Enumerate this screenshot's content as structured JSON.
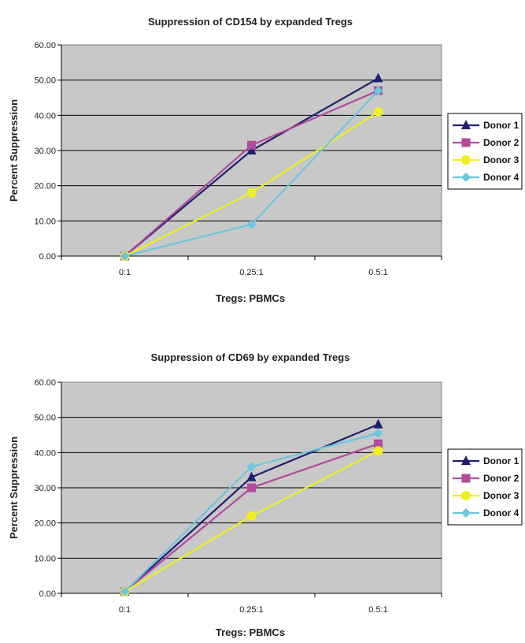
{
  "chart_data": [
    {
      "type": "line",
      "title": "Suppression of CD154 by expanded Tregs",
      "xlabel": "Tregs: PBMCs",
      "ylabel": "Percent Suppression",
      "categories": [
        "0:1",
        "0.25:1",
        "0.5:1"
      ],
      "ylim": [
        0,
        60
      ],
      "yticks": [
        "0.00",
        "10.00",
        "20.00",
        "30.00",
        "40.00",
        "50.00",
        "60.00"
      ],
      "grid": true,
      "legend_position": "right",
      "series": [
        {
          "name": "Donor 1",
          "values": [
            0,
            30,
            50.5
          ],
          "color": "#1f1f6e",
          "marker": "triangle"
        },
        {
          "name": "Donor 2",
          "values": [
            0,
            31.5,
            47
          ],
          "color": "#b24a9e",
          "marker": "square"
        },
        {
          "name": "Donor 3",
          "values": [
            0,
            18,
            41
          ],
          "color": "#f0f020",
          "marker": "circle"
        },
        {
          "name": "Donor 4",
          "values": [
            0,
            9,
            47
          ],
          "color": "#6cc6dc",
          "marker": "diamond"
        }
      ]
    },
    {
      "type": "line",
      "title": "Suppression of CD69 by expanded Tregs",
      "xlabel": "Tregs: PBMCs",
      "ylabel": "Percent Suppression",
      "categories": [
        "0:1",
        "0.25:1",
        "0.5:1"
      ],
      "ylim": [
        0,
        60
      ],
      "yticks": [
        "0.00",
        "10.00",
        "20.00",
        "30.00",
        "40.00",
        "50.00",
        "60.00"
      ],
      "grid": true,
      "legend_position": "right",
      "series": [
        {
          "name": "Donor 1",
          "values": [
            0.5,
            33,
            48
          ],
          "color": "#1f1f6e",
          "marker": "triangle"
        },
        {
          "name": "Donor 2",
          "values": [
            0.5,
            30,
            42.5
          ],
          "color": "#b24a9e",
          "marker": "square"
        },
        {
          "name": "Donor 3",
          "values": [
            0.5,
            22,
            40.5
          ],
          "color": "#f0f020",
          "marker": "circle"
        },
        {
          "name": "Donor 4",
          "values": [
            0.5,
            36,
            45.5
          ],
          "color": "#6cc6dc",
          "marker": "diamond"
        }
      ]
    }
  ]
}
